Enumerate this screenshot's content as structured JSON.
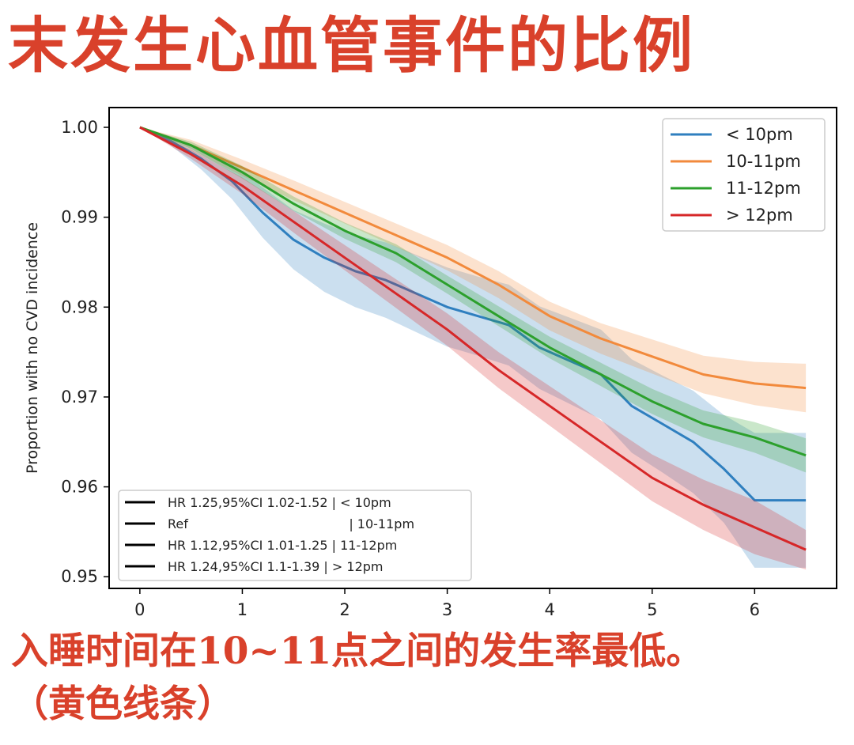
{
  "title": "末发生心血管事件的比例",
  "caption_line1": "入睡时间在10~11点之间的发生率最低。",
  "caption_line2": "（黄色线条）",
  "chart_data": {
    "type": "line",
    "ylabel": "Proportion with no CVD incidence",
    "xlabel": "",
    "xlim": [
      -0.3,
      6.8
    ],
    "ylim": [
      0.9487,
      1.0022
    ],
    "xticks": [
      "0",
      "1",
      "2",
      "3",
      "4",
      "5",
      "6"
    ],
    "yticks": [
      "0.95",
      "0.96",
      "0.97",
      "0.98",
      "0.99",
      "1.00"
    ],
    "grid": false,
    "legend_position": "top-right",
    "series": [
      {
        "name": "< 10pm",
        "color": "#2f7fbf",
        "x": [
          0,
          0.3,
          0.6,
          0.9,
          1.2,
          1.5,
          1.8,
          2.1,
          2.4,
          2.7,
          3.0,
          3.3,
          3.6,
          3.9,
          4.2,
          4.5,
          4.8,
          5.1,
          5.4,
          5.7,
          6.0,
          6.5
        ],
        "y": [
          1.0,
          0.9985,
          0.9965,
          0.994,
          0.9905,
          0.9875,
          0.9855,
          0.984,
          0.983,
          0.9815,
          0.98,
          0.979,
          0.978,
          0.9755,
          0.974,
          0.9725,
          0.969,
          0.967,
          0.965,
          0.962,
          0.9585,
          0.9585
        ],
        "ci_half_width": [
          0.0,
          0.0005,
          0.0012,
          0.002,
          0.0028,
          0.0033,
          0.0038,
          0.004,
          0.0042,
          0.0043,
          0.0044,
          0.0044,
          0.0045,
          0.0046,
          0.0048,
          0.005,
          0.0052,
          0.0054,
          0.0057,
          0.006,
          0.0075,
          0.0075
        ]
      },
      {
        "name": "10-11pm",
        "color": "#f28a3c",
        "x": [
          0,
          0.5,
          1.0,
          1.5,
          2.0,
          2.5,
          3.0,
          3.5,
          4.0,
          4.5,
          5.0,
          5.5,
          6.0,
          6.5
        ],
        "y": [
          1.0,
          0.998,
          0.9955,
          0.993,
          0.9905,
          0.988,
          0.9855,
          0.9825,
          0.979,
          0.9765,
          0.9745,
          0.9725,
          0.9715,
          0.971
        ],
        "ci_half_width": [
          0.0,
          0.0006,
          0.0009,
          0.0011,
          0.0012,
          0.0013,
          0.0014,
          0.0015,
          0.0016,
          0.0017,
          0.0019,
          0.0021,
          0.0024,
          0.0027
        ]
      },
      {
        "name": "11-12pm",
        "color": "#2ca02c",
        "x": [
          0,
          0.5,
          1.0,
          1.5,
          2.0,
          2.5,
          3.0,
          3.5,
          4.0,
          4.5,
          5.0,
          5.5,
          6.0,
          6.5
        ],
        "y": [
          1.0,
          0.998,
          0.995,
          0.9915,
          0.9885,
          0.986,
          0.9825,
          0.979,
          0.9755,
          0.9725,
          0.9695,
          0.967,
          0.9655,
          0.9635
        ],
        "ci_half_width": [
          0.0,
          0.0004,
          0.0007,
          0.0008,
          0.0009,
          0.001,
          0.001,
          0.0011,
          0.0012,
          0.0013,
          0.0014,
          0.0015,
          0.0017,
          0.0019
        ]
      },
      {
        "name": "> 12pm",
        "color": "#d62728",
        "x": [
          0,
          0.5,
          1.0,
          1.5,
          2.0,
          2.5,
          3.0,
          3.5,
          4.0,
          4.5,
          5.0,
          5.5,
          6.0,
          6.5
        ],
        "y": [
          1.0,
          0.997,
          0.9935,
          0.9895,
          0.9855,
          0.9815,
          0.9775,
          0.973,
          0.969,
          0.965,
          0.961,
          0.958,
          0.9555,
          0.953
        ],
        "ci_half_width": [
          0.0,
          0.0005,
          0.0009,
          0.0012,
          0.0014,
          0.0016,
          0.0018,
          0.002,
          0.0022,
          0.0024,
          0.0026,
          0.0028,
          0.003,
          0.0022
        ]
      }
    ],
    "hr_legend": [
      "HR 1.25,95%CI 1.02-1.52 | < 10pm",
      "Ref                                        | 10-11pm",
      "HR 1.12,95%CI 1.01-1.25 | 11-12pm",
      "HR 1.24,95%CI 1.1-1.39 | > 12pm"
    ]
  }
}
